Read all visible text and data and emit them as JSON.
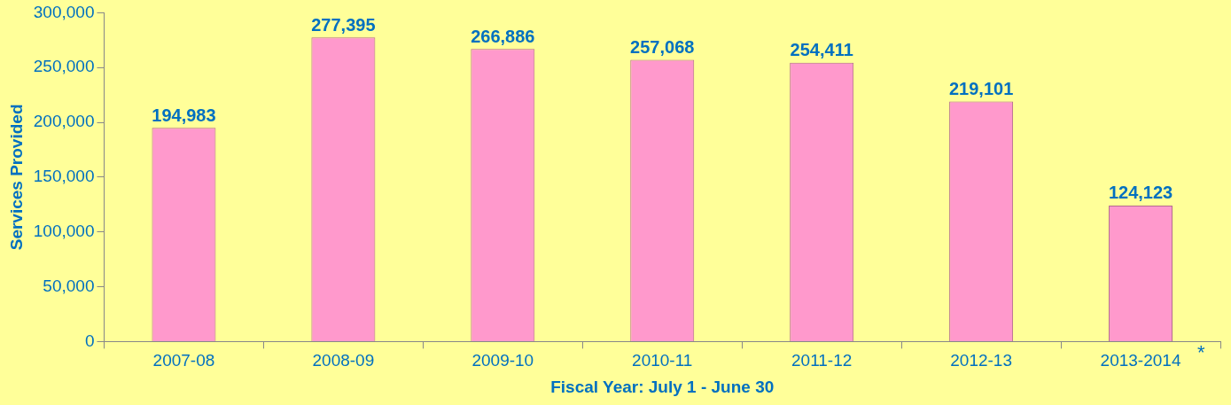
{
  "chart_data": {
    "type": "bar",
    "xlabel": "Fiscal Year: July 1 - June 30",
    "ylabel": "Services Provided",
    "categories": [
      "2007-08",
      "2008-09",
      "2009-10",
      "2010-11",
      "2011-12",
      "2012-13",
      "2013-2014"
    ],
    "values": [
      194983,
      277395,
      266886,
      257068,
      254411,
      219101,
      124123
    ],
    "color": "#ff99cc",
    "value_labels": [
      "194,983",
      "277,395",
      "266,886",
      "257,068",
      "254,411",
      "219,101",
      "124,123"
    ],
    "ylim": [
      0,
      300000
    ],
    "yticks": [
      0,
      {
        "value": 50000,
        "label": "50,000"
      },
      {
        "value": 100000,
        "label": "100,000"
      },
      {
        "value": 150000,
        "label": "150,000"
      },
      {
        "value": 200000,
        "label": "200,000"
      },
      {
        "value": 250000,
        "label": "250,000"
      },
      {
        "value": 300000,
        "label": "300,000"
      }
    ],
    "grid": false,
    "legend": false,
    "annotations": [
      "*"
    ]
  }
}
